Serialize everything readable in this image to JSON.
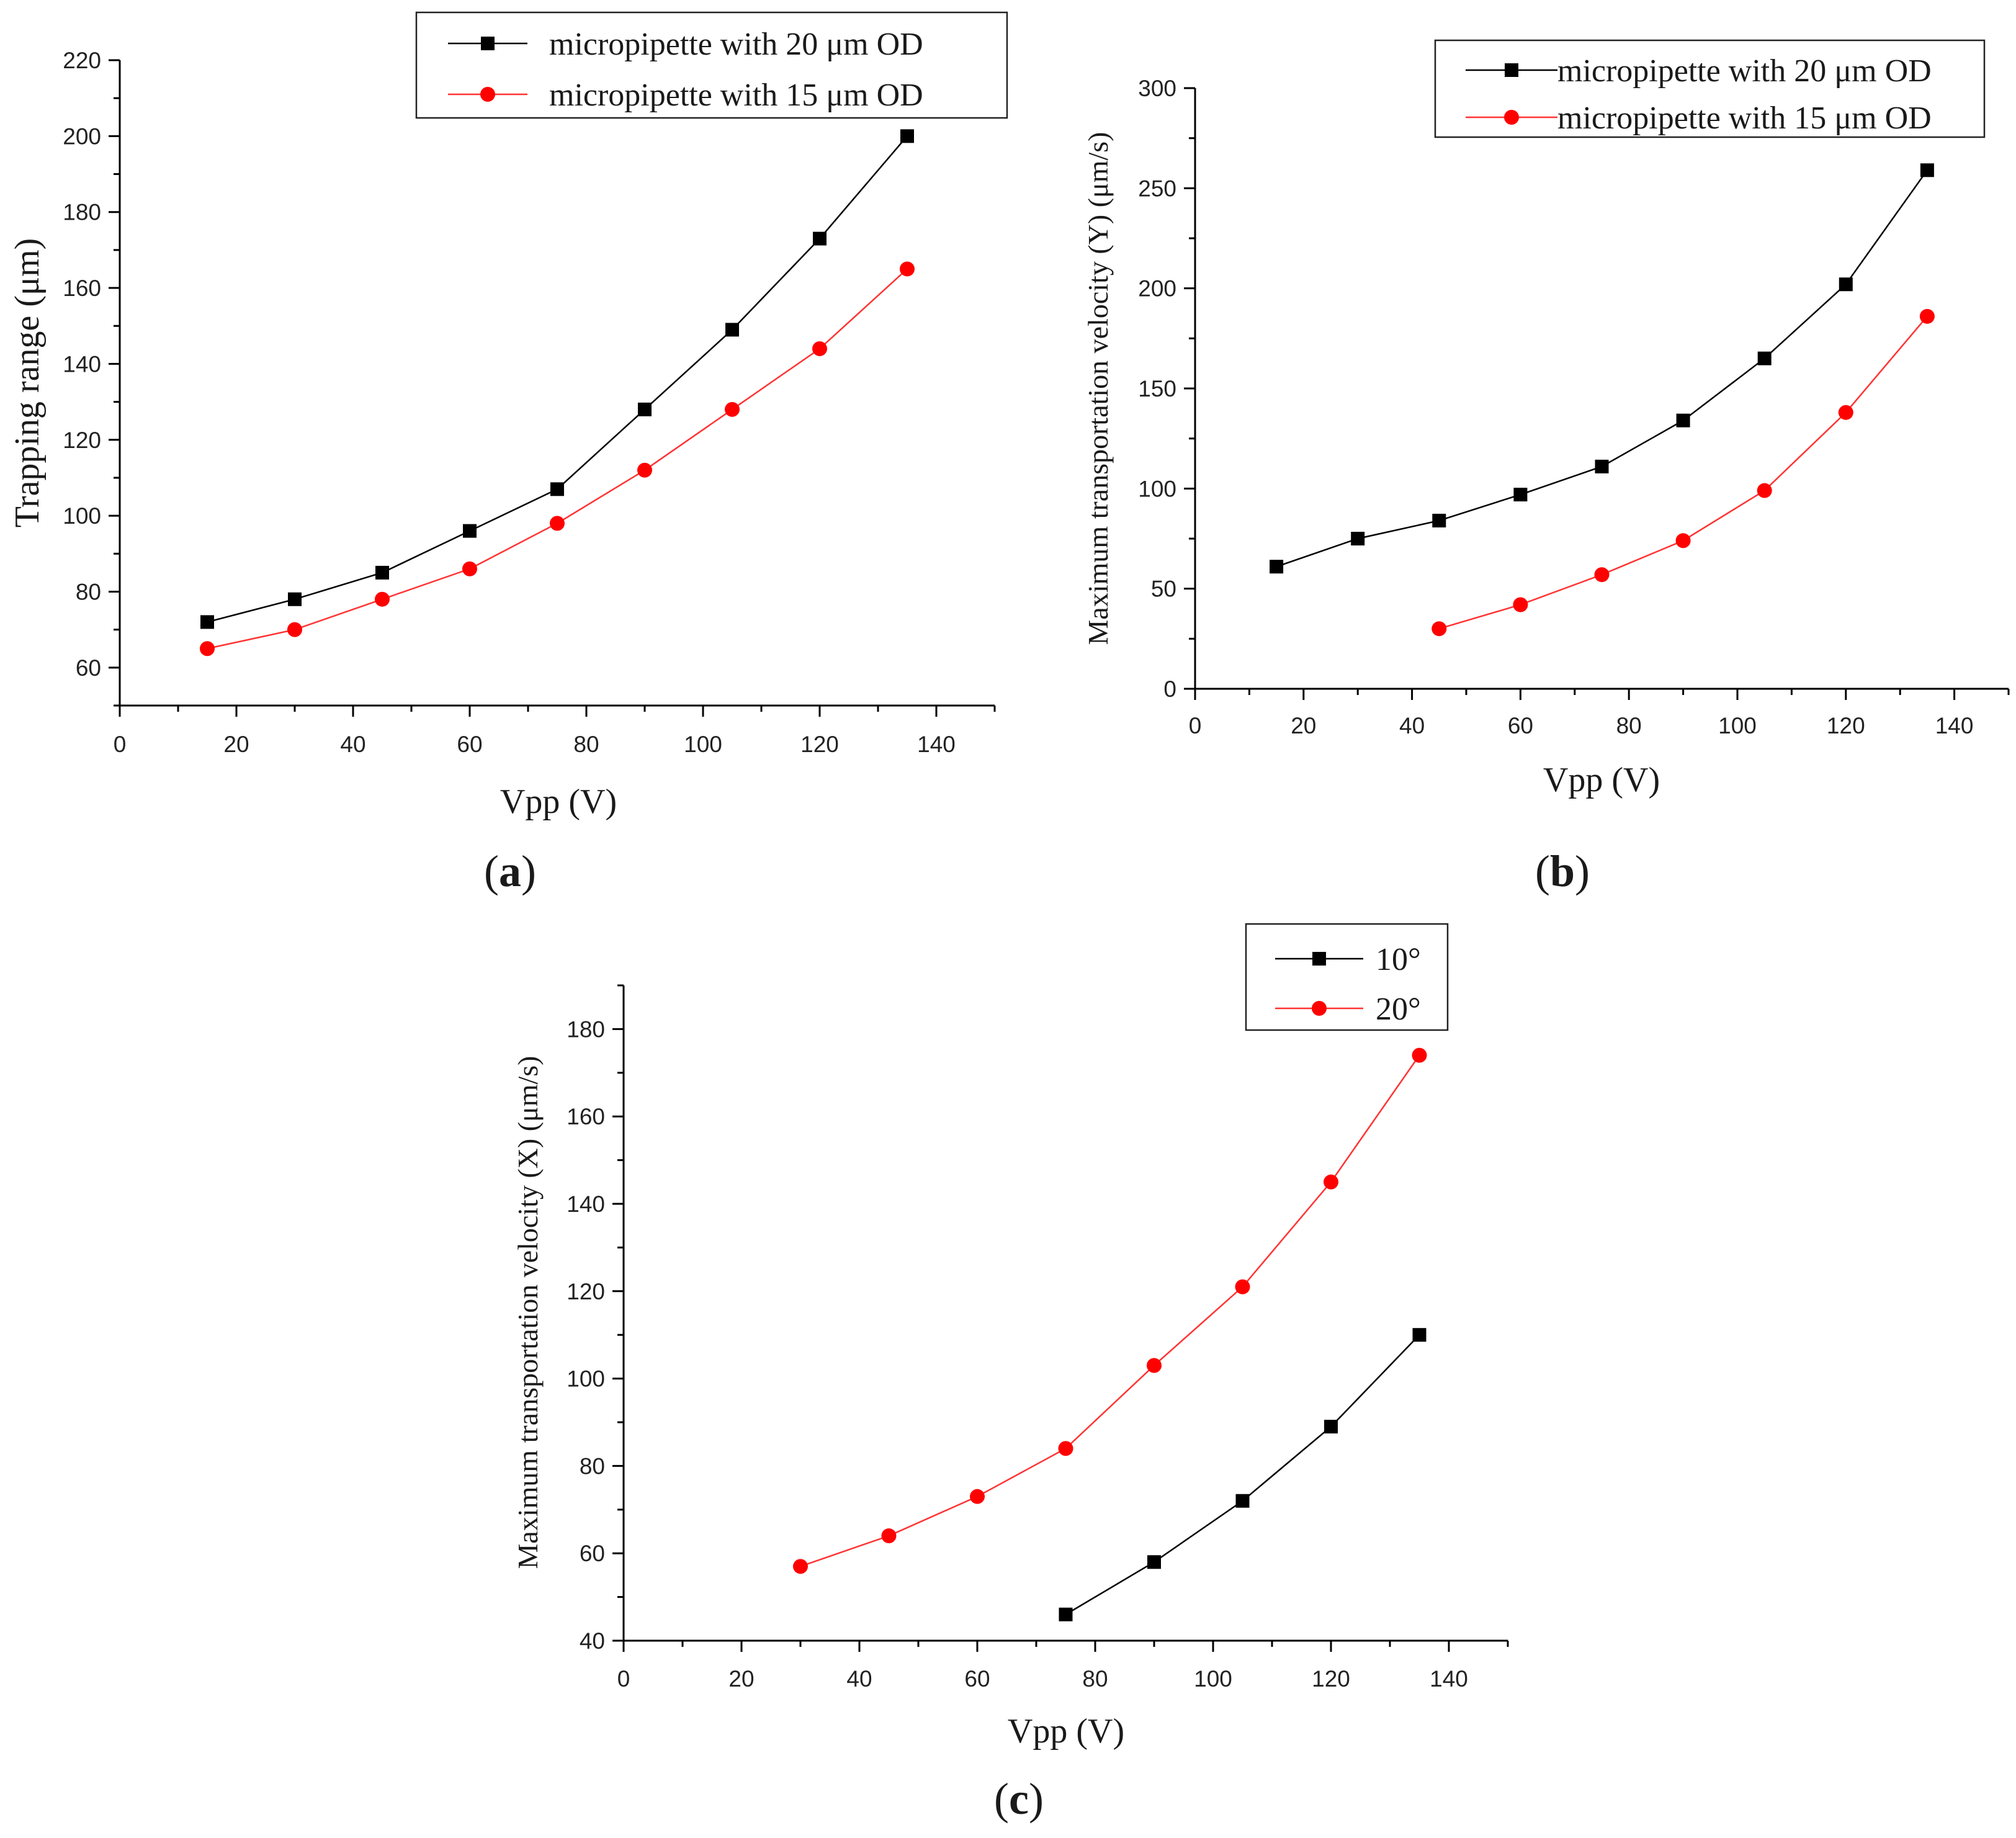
{
  "colors": {
    "series_black": "#000000",
    "series_red": "#ff0000",
    "line_red": "#ff3333",
    "axis": "#000000"
  },
  "chart_data": [
    {
      "id": "a",
      "type": "line",
      "panel_label": {
        "open": "(",
        "letter": "a",
        "close": ")"
      },
      "xlabel": "Vpp (V)",
      "ylabel": "Trapping range (μm)",
      "xlim": [
        0,
        150
      ],
      "ylim": [
        50,
        220
      ],
      "xticks": [
        0,
        20,
        40,
        60,
        80,
        100,
        120,
        140
      ],
      "yticks": [
        60,
        80,
        100,
        120,
        140,
        160,
        180,
        200,
        220
      ],
      "legend_position": "top-right",
      "series": [
        {
          "name": "micropipette with 20 μm OD",
          "marker": "square",
          "color": "#000000",
          "x": [
            15,
            30,
            45,
            60,
            75,
            90,
            105,
            120,
            135
          ],
          "y": [
            72,
            78,
            85,
            96,
            107,
            128,
            149,
            173,
            200
          ]
        },
        {
          "name": "micropipette with 15 μm OD",
          "marker": "circle",
          "color": "#ff0000",
          "x": [
            15,
            30,
            45,
            60,
            75,
            90,
            105,
            120,
            135
          ],
          "y": [
            65,
            70,
            78,
            86,
            98,
            112,
            128,
            144,
            165
          ]
        }
      ]
    },
    {
      "id": "b",
      "type": "line",
      "panel_label": {
        "open": "(",
        "letter": "b",
        "close": ")"
      },
      "xlabel": "Vpp (V)",
      "ylabel": "Maximum  transportation velocity (Y) (μm/s)",
      "xlim": [
        0,
        150
      ],
      "ylim": [
        0,
        300
      ],
      "xticks": [
        0,
        20,
        40,
        60,
        80,
        100,
        120,
        140
      ],
      "yticks": [
        0,
        50,
        100,
        150,
        200,
        250,
        300
      ],
      "legend_position": "top-right",
      "series": [
        {
          "name": "micropipette with 20 μm OD",
          "marker": "square",
          "color": "#000000",
          "x": [
            15,
            30,
            45,
            60,
            75,
            90,
            105,
            120,
            135
          ],
          "y": [
            61,
            75,
            84,
            97,
            111,
            134,
            165,
            202,
            259
          ]
        },
        {
          "name": "micropipette with 15 μm OD",
          "marker": "circle",
          "color": "#ff0000",
          "x": [
            45,
            60,
            75,
            90,
            105,
            120,
            135
          ],
          "y": [
            30,
            42,
            57,
            74,
            99,
            138,
            186
          ]
        }
      ]
    },
    {
      "id": "c",
      "type": "line",
      "panel_label": {
        "open": "(",
        "letter": "c",
        "close": ")"
      },
      "xlabel": "Vpp (V)",
      "ylabel": "Maximum  transportation velocity (X) (μm/s)",
      "xlim": [
        0,
        150
      ],
      "ylim": [
        40,
        190
      ],
      "xticks": [
        0,
        20,
        40,
        60,
        80,
        100,
        120,
        140
      ],
      "yticks": [
        40,
        60,
        80,
        100,
        120,
        140,
        160,
        180
      ],
      "legend_position": "top-right",
      "series": [
        {
          "name": "10°",
          "marker": "square",
          "color": "#000000",
          "x": [
            75,
            90,
            105,
            120,
            135
          ],
          "y": [
            46,
            58,
            72,
            89,
            110
          ]
        },
        {
          "name": "20°",
          "marker": "circle",
          "color": "#ff0000",
          "x": [
            30,
            45,
            60,
            75,
            90,
            105,
            120,
            135
          ],
          "y": [
            57,
            64,
            73,
            84,
            103,
            121,
            145,
            174
          ]
        }
      ]
    }
  ]
}
